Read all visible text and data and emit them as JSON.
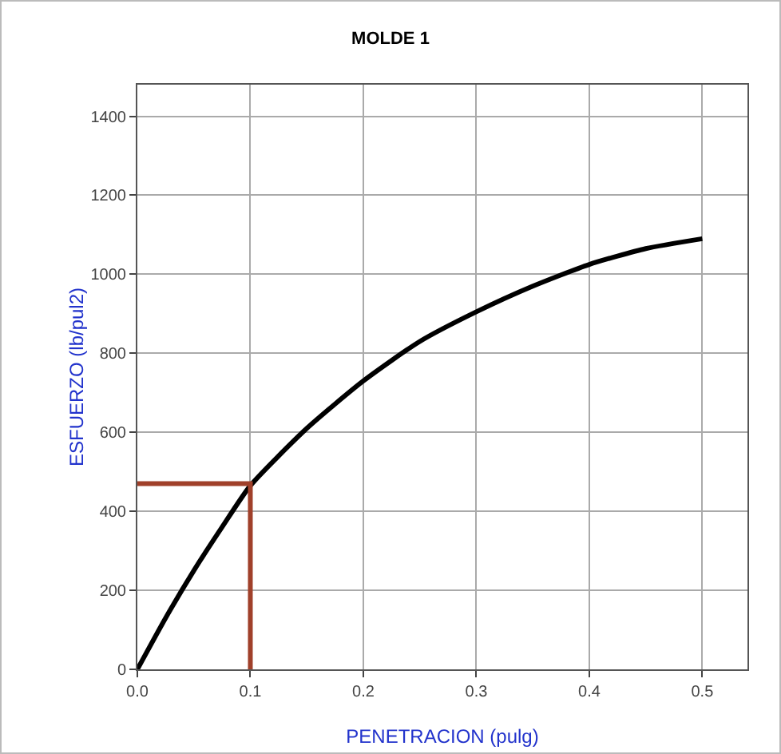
{
  "chart_data": {
    "type": "line",
    "title": "MOLDE 1",
    "xlabel": "PENETRACION (pulg)",
    "ylabel": "ESFUERZO (lb/pul2)",
    "series": [
      {
        "color": "#000000",
        "x": [
          0,
          0.025,
          0.05,
          0.075,
          0.1,
          0.15,
          0.2,
          0.25,
          0.3,
          0.35,
          0.4,
          0.45,
          0.5
        ],
        "values": [
          0,
          130,
          250,
          360,
          465,
          610,
          730,
          830,
          905,
          970,
          1025,
          1065,
          1090
        ]
      },
      {
        "color": "#a0402a",
        "x": [
          0,
          0.1,
          0.1
        ],
        "values": [
          470,
          470,
          0
        ]
      }
    ],
    "xlim": [
      0,
      0.54
    ],
    "xticks": [
      {
        "value": 0,
        "label": "0.0"
      },
      0.1,
      0.2,
      0.3,
      0.4,
      0.5
    ],
    "ylim": [
      0,
      1480
    ],
    "yticks": [
      0,
      200,
      400,
      600,
      800,
      1000,
      1200,
      1400
    ],
    "grid": true,
    "legend": false,
    "marker": "none",
    "line_style": "solid"
  }
}
